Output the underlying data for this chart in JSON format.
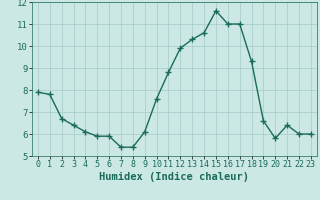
{
  "x": [
    0,
    1,
    2,
    3,
    4,
    5,
    6,
    7,
    8,
    9,
    10,
    11,
    12,
    13,
    14,
    15,
    16,
    17,
    18,
    19,
    20,
    21,
    22,
    23
  ],
  "y": [
    7.9,
    7.8,
    6.7,
    6.4,
    6.1,
    5.9,
    5.9,
    5.4,
    5.4,
    6.1,
    7.6,
    8.8,
    9.9,
    10.3,
    10.6,
    11.6,
    11.0,
    11.0,
    9.3,
    6.6,
    5.8,
    6.4,
    6.0,
    6.0
  ],
  "xlabel": "Humidex (Indice chaleur)",
  "ylim": [
    5,
    12
  ],
  "xlim": [
    -0.5,
    23.5
  ],
  "yticks": [
    5,
    6,
    7,
    8,
    9,
    10,
    11,
    12
  ],
  "xticks": [
    0,
    1,
    2,
    3,
    4,
    5,
    6,
    7,
    8,
    9,
    10,
    11,
    12,
    13,
    14,
    15,
    16,
    17,
    18,
    19,
    20,
    21,
    22,
    23
  ],
  "line_color": "#1a6b5a",
  "marker": "+",
  "bg_color": "#cce8e5",
  "grid_color": "#aacfcc",
  "tick_label_color": "#1a6b5a",
  "xlabel_color": "#1a6b5a",
  "xlabel_fontsize": 7.5,
  "tick_fontsize": 6.0,
  "ytick_fontsize": 6.5
}
